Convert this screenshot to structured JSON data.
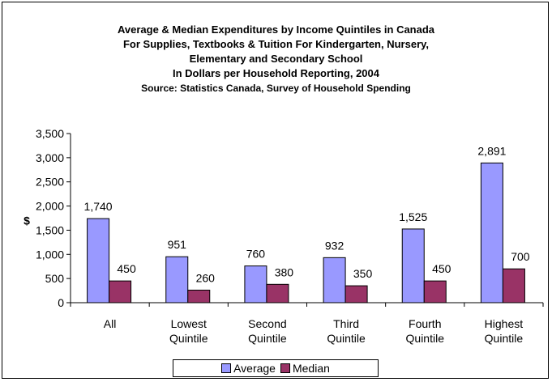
{
  "chart_data": {
    "type": "bar",
    "title_lines": [
      "Average &  Median  Expenditures by Income Quintiles in Canada",
      "For Supplies, Textbooks & Tuition For Kindergarten, Nursery,",
      "Elementary and Secondary School",
      "In Dollars per Household Reporting, 2004"
    ],
    "source": "Source:  Statistics Canada, Survey of Household Spending",
    "ylabel": "$",
    "ylim": [
      0,
      3500
    ],
    "yticks": [
      "0",
      "500",
      "1,000",
      "1,500",
      "2,000",
      "2,500",
      "3,000",
      "3,500"
    ],
    "categories": [
      [
        "All"
      ],
      [
        "Lowest",
        "Quintile"
      ],
      [
        "Second",
        "Quintile"
      ],
      [
        "Third",
        "Quintile"
      ],
      [
        "Fourth",
        "Quintile"
      ],
      [
        "Highest",
        "Quintile"
      ]
    ],
    "series": [
      {
        "name": "Average",
        "color": "#9999FF",
        "values": [
          1740,
          951,
          760,
          932,
          1525,
          2891
        ],
        "labels": [
          "1,740",
          "951",
          "760",
          "932",
          "1,525",
          "2,891"
        ]
      },
      {
        "name": "Median",
        "color": "#993366",
        "values": [
          450,
          260,
          380,
          350,
          450,
          700
        ],
        "labels": [
          "450",
          "260",
          "380",
          "350",
          "450",
          "700"
        ]
      }
    ],
    "grid": false,
    "legend": "bottom"
  }
}
